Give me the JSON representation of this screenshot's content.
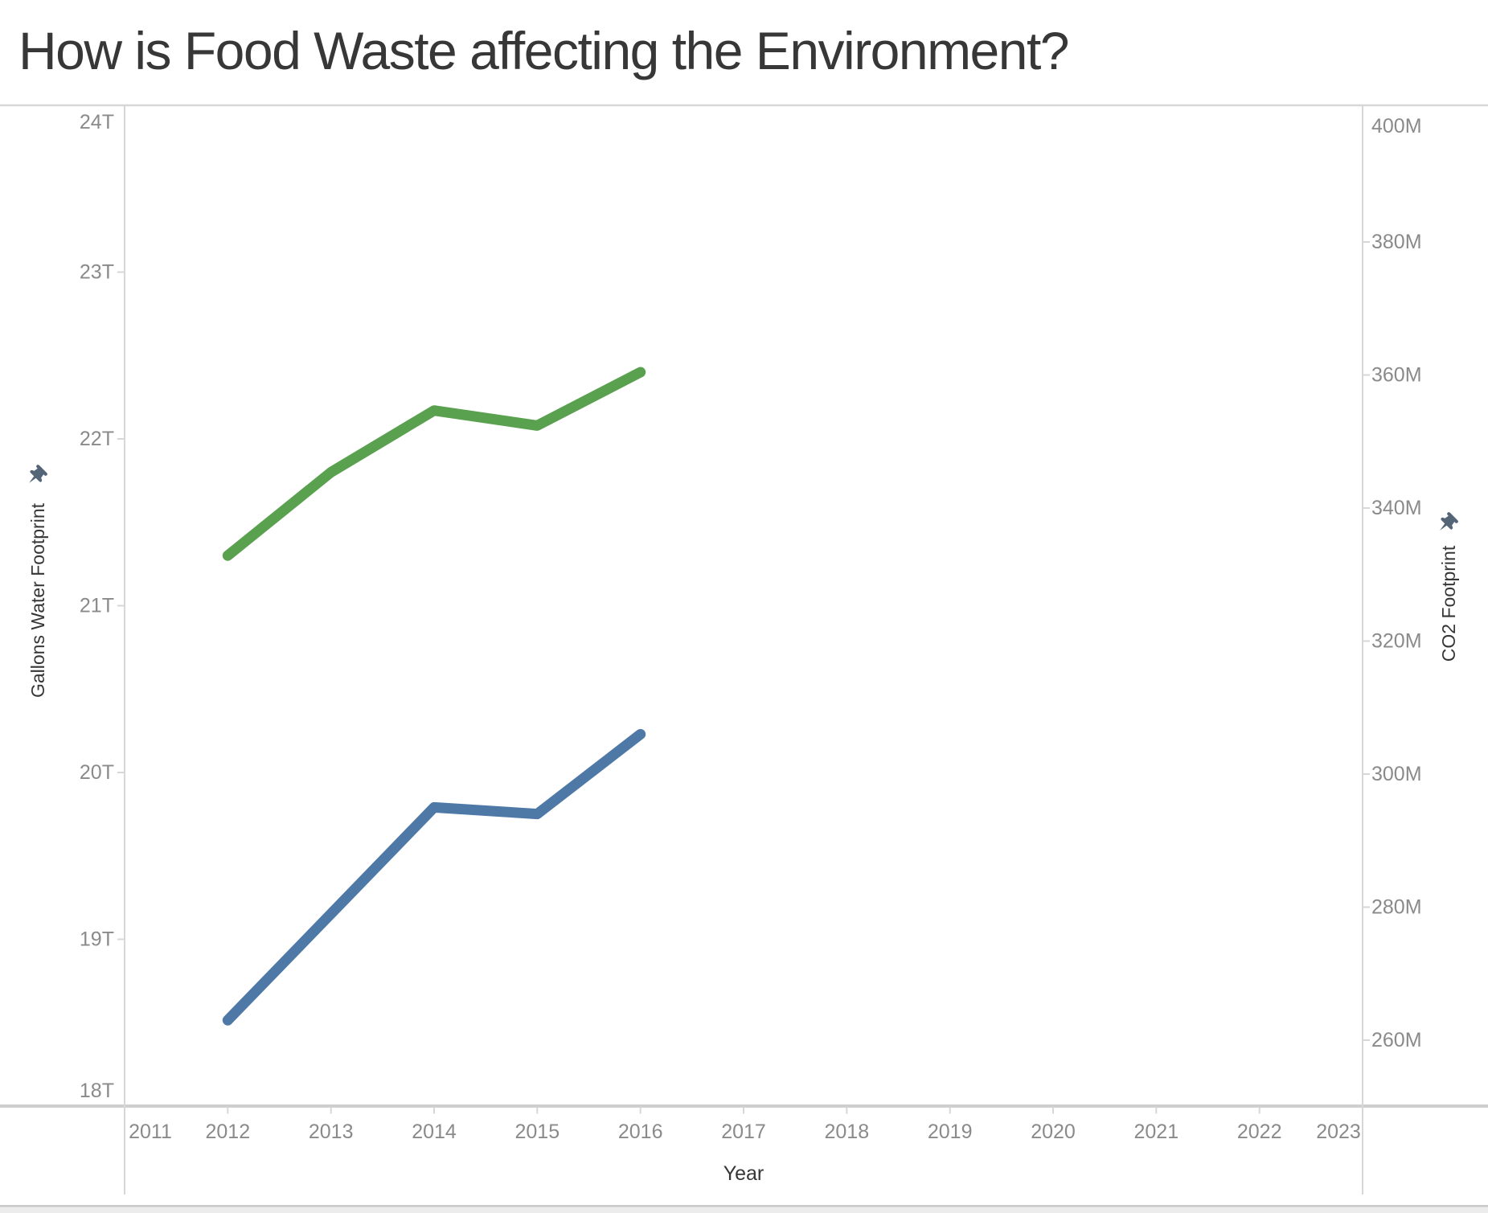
{
  "title": "How is Food Waste affecting the Environment?",
  "chart_data": {
    "type": "line",
    "title": "How is Food Waste affecting the Environment?",
    "x": [
      2012,
      2013,
      2014,
      2015,
      2016
    ],
    "x_axis": {
      "label": "Year",
      "range": [
        2011,
        2023
      ],
      "tick_labels": [
        "2011",
        "2012",
        "2013",
        "2014",
        "2015",
        "2016",
        "2017",
        "2018",
        "2019",
        "2020",
        "2021",
        "2022",
        "2023"
      ]
    },
    "left_axis": {
      "label": "Gallons Water Footprint",
      "range_trillions": [
        18,
        24
      ],
      "tick_labels": [
        "24T",
        "23T",
        "22T",
        "21T",
        "20T",
        "19T",
        "18T"
      ]
    },
    "right_axis": {
      "label": "CO2 Footprint",
      "range_millions": [
        250,
        400
      ],
      "tick_labels": [
        "400M",
        "380M",
        "360M",
        "340M",
        "320M",
        "300M",
        "280M",
        "260M"
      ]
    },
    "series": [
      {
        "name": "Gallons Water Footprint",
        "axis": "left",
        "color": "#59a14f",
        "values_trillions": [
          21.3,
          21.8,
          22.17,
          22.08,
          22.4
        ]
      },
      {
        "name": "CO2 Footprint",
        "axis": "right",
        "color": "#4e79a7",
        "values_millions": [
          263,
          279,
          295,
          294,
          306
        ]
      }
    ],
    "grid": false,
    "legend": false
  },
  "icons": {
    "left_axis_pin": "pin-icon",
    "right_axis_pin": "pin-icon"
  },
  "colors": {
    "water_line": "#59a14f",
    "co2_line": "#4e79a7",
    "axis_line": "#d7d7d7",
    "bottom_axis_line": "#cfcfcf",
    "tick_label": "#8a8a8a",
    "axis_title": "#363636",
    "chart_title": "#373737",
    "pin": "#546578",
    "scrollbar_track": "#ececec",
    "scrollbar_edge": "#c9c9c9"
  }
}
